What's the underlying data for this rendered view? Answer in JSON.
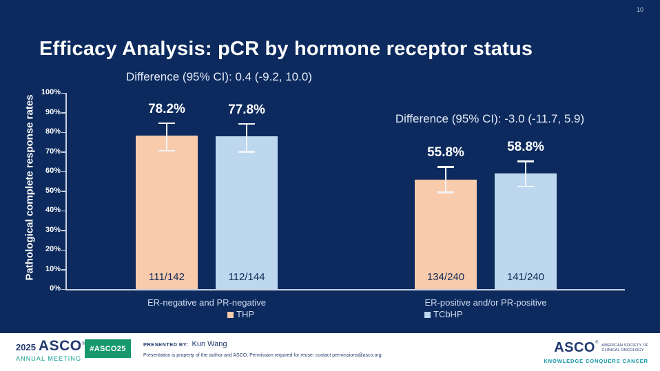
{
  "page_number": "10",
  "title": "Efficacy Analysis: pCR by hormone receptor status",
  "chart_data": {
    "type": "bar",
    "title": "",
    "xlabel": "",
    "ylabel": "Pathological complete response rates",
    "ylim": [
      0,
      100
    ],
    "ytick_step": 10,
    "ytick_suffix": "%",
    "grid": false,
    "legend_position": "bottom",
    "categories": [
      "ER-negative and PR-negative",
      "ER-positive and/or PR-positive"
    ],
    "series": [
      {
        "name": "THP",
        "color": "#f8cbad",
        "values": [
          78.2,
          55.8
        ],
        "value_labels": [
          "78.2%",
          "55.8%"
        ],
        "fractions": [
          "111/142",
          "134/240"
        ],
        "ci_low": [
          70.4,
          49.2
        ],
        "ci_high": [
          84.6,
          62.3
        ]
      },
      {
        "name": "TCbHP",
        "color": "#bdd7ee",
        "values": [
          77.8,
          58.8
        ],
        "value_labels": [
          "77.8%",
          "58.8%"
        ],
        "fractions": [
          "112/144",
          "141/240"
        ],
        "ci_low": [
          70.0,
          52.2
        ],
        "ci_high": [
          84.3,
          65.1
        ]
      }
    ],
    "annotations": [
      "Difference (95% CI): 0.4 (-9.2, 10.0)",
      "Difference (95% CI): -3.0 (-11.7, 5.9)"
    ]
  },
  "footer": {
    "year": "2025",
    "org": "ASCO",
    "reg": "®",
    "meeting": "ANNUAL MEETING",
    "hashtag": "#ASCO25",
    "presented_by_label": "PRESENTED BY:",
    "presenter": "Kun Wang",
    "disclaimer": "Presentation is property of the author and ASCO. Permission required for reuse; contact permissions@asco.org.",
    "logo_org": "ASCO",
    "logo_sub1": "AMERICAN SOCIETY OF",
    "logo_sub2": "CLINICAL ONCOLOGY",
    "tagline": "KNOWLEDGE CONQUERS CANCER"
  },
  "colors": {
    "background": "#0c2a5e",
    "axis": "#c9d2e0",
    "whisker": "#f2f4f8",
    "badge_green": "#17996c",
    "teal": "#0f9a91"
  }
}
